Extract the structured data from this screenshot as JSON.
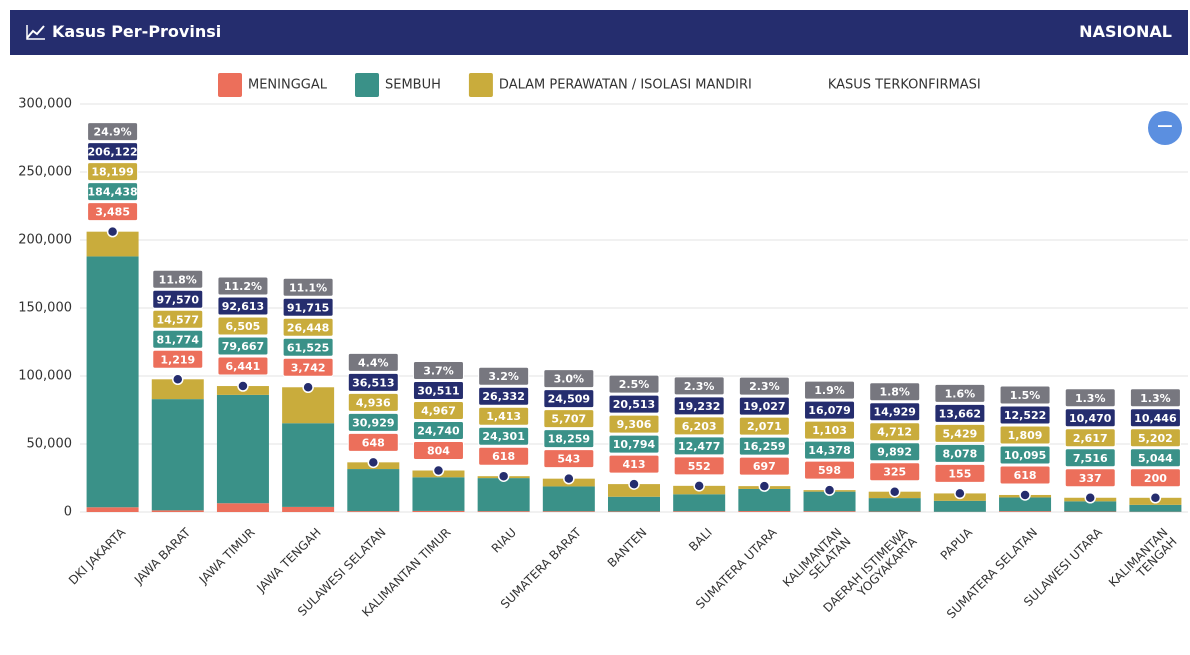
{
  "header": {
    "title": "Kasus Per-Provinsi",
    "right": "NASIONAL"
  },
  "chart_data": {
    "type": "bar",
    "stacked": true,
    "categories": [
      "DKI JAKARTA",
      "JAWA BARAT",
      "JAWA TIMUR",
      "JAWA TENGAH",
      "SULAWESI SELATAN",
      "KALIMANTAN TIMUR",
      "RIAU",
      "SUMATERA BARAT",
      "BANTEN",
      "BALI",
      "SUMATERA UTARA",
      "KALIMANTAN\nSELATAN",
      "DAERAH ISTIMEWA\nYOGYAKARTA",
      "PAPUA",
      "SUMATERA SELATAN",
      "SULAWESI UTARA",
      "KALIMANTAN\nTENGAH"
    ],
    "series": [
      {
        "name": "MENINGGAL",
        "color": "#ec6f5b",
        "values": [
          3485,
          1219,
          6441,
          3742,
          648,
          804,
          618,
          543,
          413,
          552,
          697,
          598,
          325,
          155,
          618,
          337,
          200
        ],
        "value_labels": [
          "3,485",
          "1,219",
          "6,441",
          "3,742",
          "648",
          "804",
          "618",
          "543",
          "413",
          "552",
          "697",
          "598",
          "325",
          "155",
          "618",
          "337",
          "200"
        ]
      },
      {
        "name": "SEMBUH",
        "color": "#3a9188",
        "values": [
          184438,
          81774,
          79667,
          61525,
          30929,
          24740,
          24301,
          18259,
          10794,
          12477,
          16259,
          14378,
          9892,
          8078,
          10095,
          7516,
          5044
        ],
        "value_labels": [
          "184,438",
          "81,774",
          "79,667",
          "61,525",
          "30,929",
          "24,740",
          "24,301",
          "18,259",
          "10,794",
          "12,477",
          "16,259",
          "14,378",
          "9,892",
          "8,078",
          "10,095",
          "7,516",
          "5,044"
        ]
      },
      {
        "name": "DALAM PERAWATAN / ISOLASI MANDIRI",
        "color": "#c9ac3c",
        "values": [
          18199,
          14577,
          6505,
          26448,
          4936,
          4967,
          1413,
          5707,
          9306,
          6203,
          2071,
          1103,
          4712,
          5429,
          1809,
          2617,
          5202
        ],
        "value_labels": [
          "18,199",
          "14,577",
          "6,505",
          "26,448",
          "4,936",
          "4,967",
          "1,413",
          "5,707",
          "9,306",
          "6,203",
          "2,071",
          "1,103",
          "4,712",
          "5,429",
          "1,809",
          "2,617",
          "5,202"
        ]
      },
      {
        "name": "KASUS TERKONFIRMASI",
        "type": "dot",
        "color": "#252d6e",
        "values": [
          206122,
          97570,
          92613,
          91715,
          36513,
          30511,
          26332,
          24509,
          20513,
          19232,
          19027,
          16079,
          14929,
          13662,
          12522,
          10470,
          10446
        ],
        "value_labels": [
          "206,122",
          "97,570",
          "92,613",
          "91,715",
          "36,513",
          "30,511",
          "26,332",
          "24,509",
          "20,513",
          "19,232",
          "19,027",
          "16,079",
          "14,929",
          "13,662",
          "12,522",
          "10,470",
          "10,446"
        ]
      }
    ],
    "share": {
      "color": "#77777f",
      "values": [
        24.9,
        11.8,
        11.2,
        11.1,
        4.4,
        3.7,
        3.2,
        3.0,
        2.5,
        2.3,
        2.3,
        1.9,
        1.8,
        1.6,
        1.5,
        1.3,
        1.3
      ],
      "value_labels": [
        "24.9%",
        "11.8%",
        "11.2%",
        "11.1%",
        "4.4%",
        "3.7%",
        "3.2%",
        "3.0%",
        "2.5%",
        "2.3%",
        "2.3%",
        "1.9%",
        "1.8%",
        "1.6%",
        "1.5%",
        "1.3%",
        "1.3%"
      ]
    },
    "ylim": [
      0,
      300000
    ],
    "yticks": [
      0,
      {
        "value": 50000,
        "label": "50,000"
      },
      {
        "value": 100000,
        "label": "100,000"
      },
      {
        "value": 150000,
        "label": "150,000"
      },
      {
        "value": 200000,
        "label": "200,000"
      },
      {
        "value": 250000,
        "label": "250,000"
      },
      {
        "value": 300000,
        "label": "300,000"
      }
    ],
    "grid": true
  }
}
